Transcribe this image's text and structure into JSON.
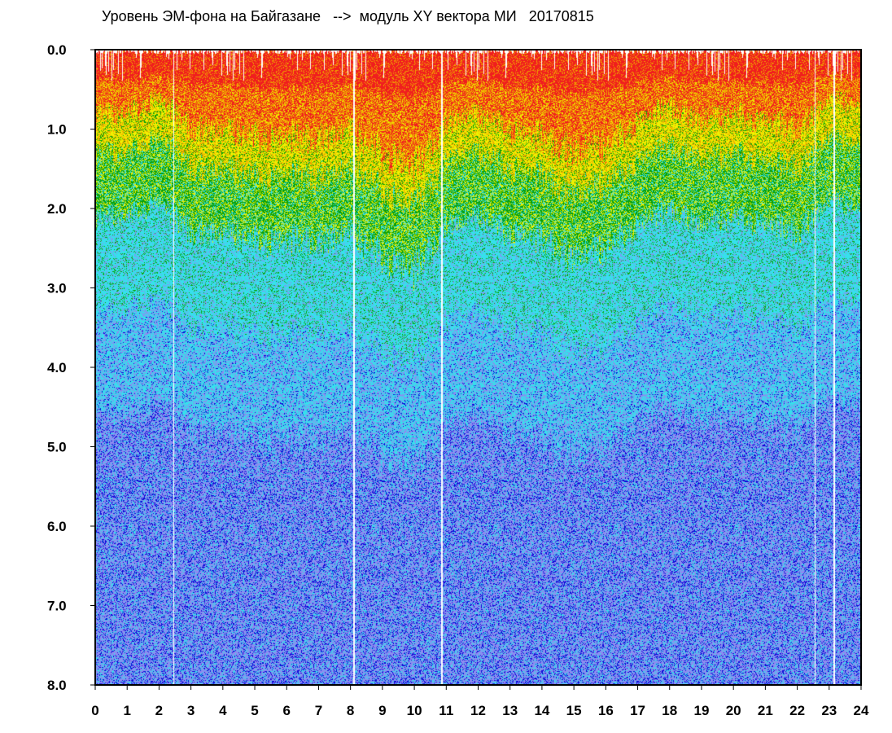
{
  "chart_data": {
    "type": "heatmap",
    "title": "Уровень ЭМ-фона на Байгазане   -->  модуль XY вектора МИ   20170815",
    "xlabel": "",
    "ylabel": "",
    "xlim": [
      0,
      24
    ],
    "ylim": [
      0.0,
      8.0
    ],
    "y_inverted": true,
    "x_ticks": [
      "0",
      "1",
      "2",
      "3",
      "4",
      "5",
      "6",
      "7",
      "8",
      "9",
      "10",
      "11",
      "12",
      "13",
      "14",
      "15",
      "16",
      "17",
      "18",
      "19",
      "20",
      "21",
      "22",
      "23",
      "24"
    ],
    "y_ticks": [
      "0.0",
      "1.0",
      "2.0",
      "3.0",
      "4.0",
      "5.0",
      "6.0",
      "7.0",
      "8.0"
    ],
    "colorscale": [
      "#ffffff",
      "#0a0ad8",
      "#8c8cf0",
      "#36e0ec",
      "#0aa00a",
      "#f0f000",
      "#f0a000",
      "#f01e1e"
    ],
    "density_profile": {
      "x_hours": [
        0,
        1,
        2,
        3,
        4,
        5,
        6,
        7,
        8,
        9,
        10,
        11,
        12,
        13,
        14,
        15,
        16,
        17,
        18,
        19,
        20,
        21,
        22,
        23,
        24
      ],
      "mode_level": [
        1.1,
        1.1,
        0.9,
        1.3,
        1.3,
        1.4,
        1.4,
        1.4,
        1.3,
        1.6,
        1.8,
        1.2,
        1.1,
        1.3,
        1.4,
        1.6,
        1.5,
        1.2,
        1.0,
        1.2,
        1.1,
        1.2,
        1.3,
        0.9,
        1.0
      ]
    },
    "gaps_hours": [
      8.1,
      10.85,
      2.45,
      22.55,
      23.15
    ]
  }
}
